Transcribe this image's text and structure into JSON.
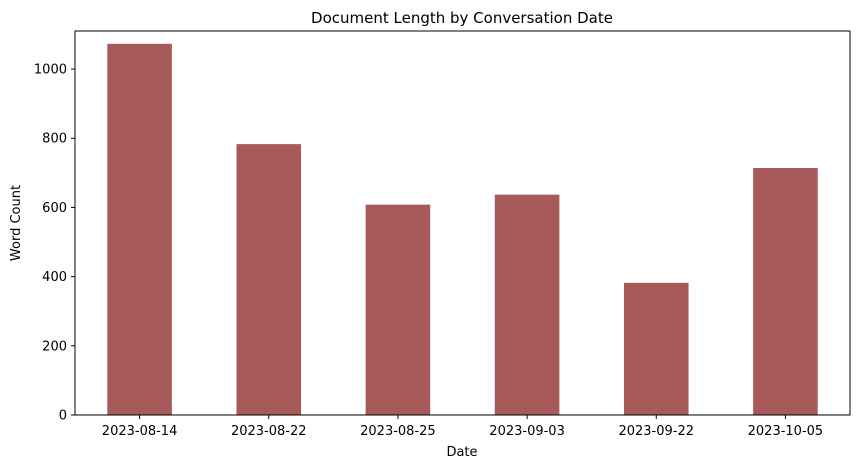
{
  "chart_data": {
    "type": "bar",
    "title": "Document Length by Conversation Date",
    "xlabel": "Date",
    "ylabel": "Word Count",
    "categories": [
      "2023-08-14",
      "2023-08-22",
      "2023-08-25",
      "2023-09-03",
      "2023-09-22",
      "2023-10-05"
    ],
    "values": [
      1073,
      783,
      608,
      637,
      382,
      714
    ],
    "ylim": [
      0,
      1110
    ],
    "yticks": [
      0,
      200,
      400,
      600,
      800,
      1000
    ],
    "grid": false,
    "bar_color": "#a85a5a"
  }
}
